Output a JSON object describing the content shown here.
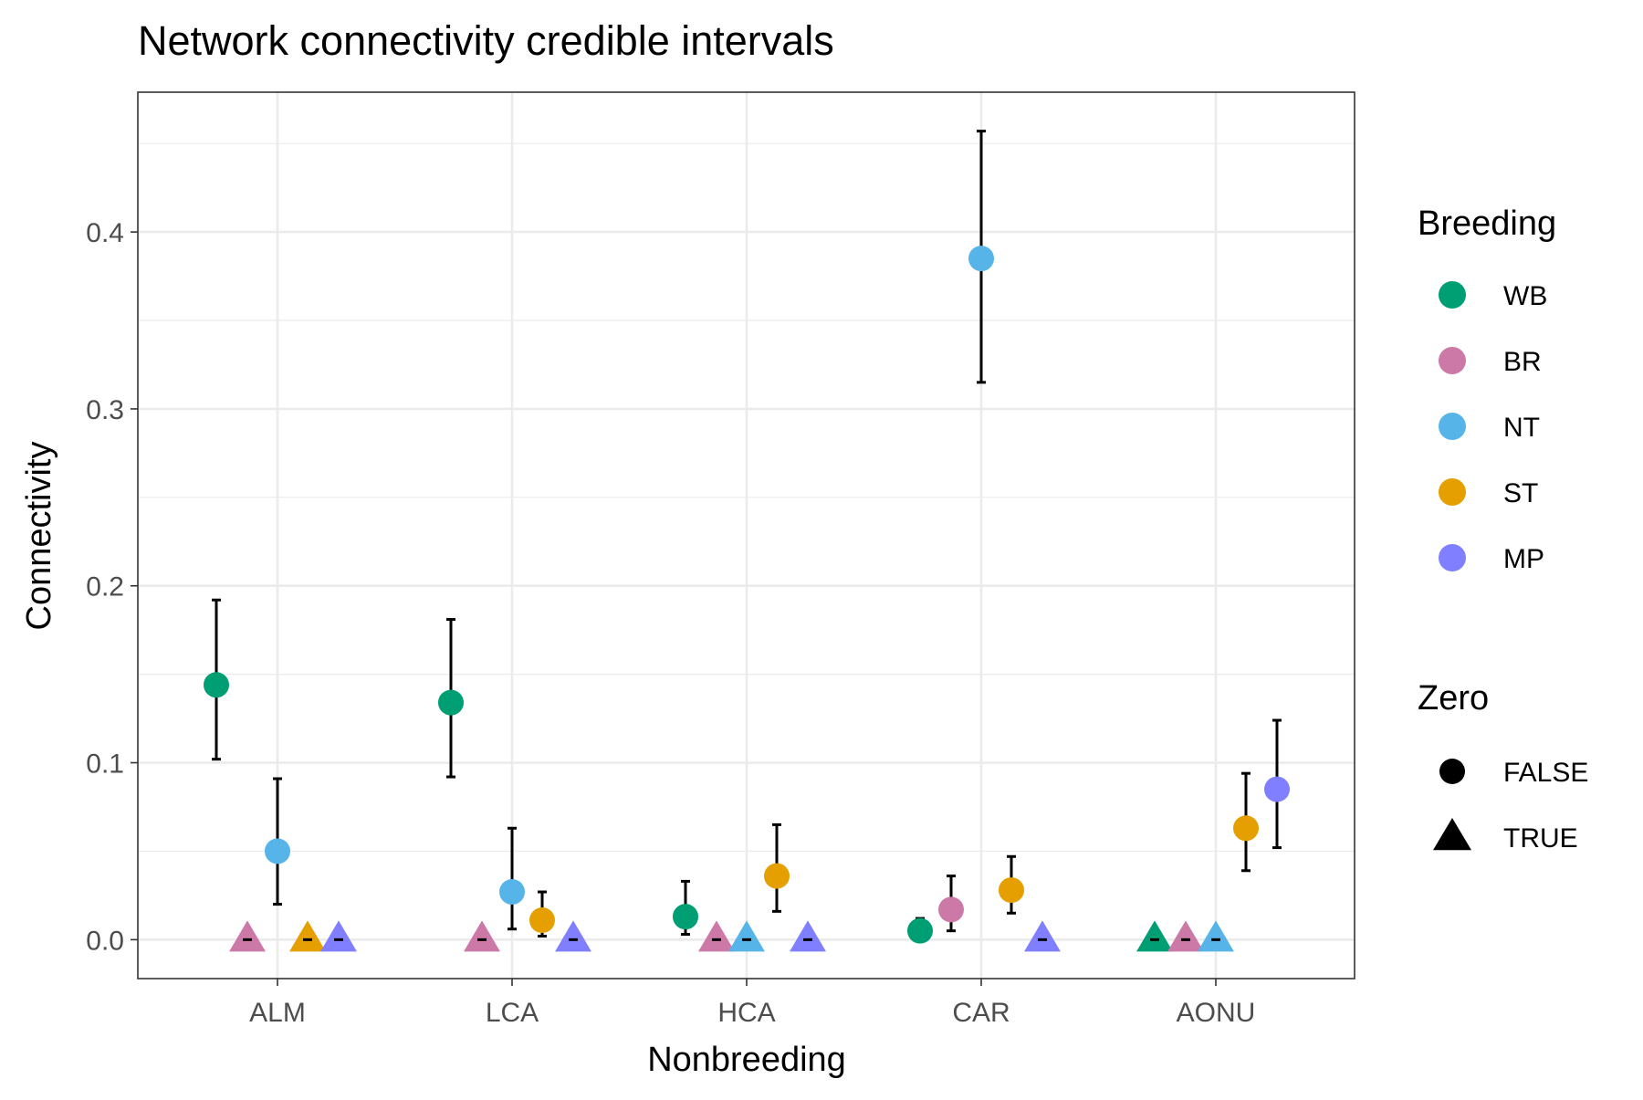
{
  "chart_data": {
    "type": "scatter",
    "title": "Network connectivity credible intervals",
    "xlabel": "Nonbreeding",
    "ylabel": "Connectivity",
    "categories": [
      "ALM",
      "LCA",
      "HCA",
      "CAR",
      "AONU"
    ],
    "yticks": [
      "0.0",
      "0.1",
      "0.2",
      "0.3",
      "0.4"
    ],
    "ylim": [
      -0.022,
      0.479
    ],
    "grid": true,
    "legend_placement": "right",
    "legend": {
      "breeding": {
        "title": "Breeding",
        "items": [
          {
            "label": "WB",
            "color": "#009E73"
          },
          {
            "label": "BR",
            "color": "#CC79A7"
          },
          {
            "label": "NT",
            "color": "#56B4E9"
          },
          {
            "label": "ST",
            "color": "#E69F00"
          },
          {
            "label": "MP",
            "color": "#7F7FFF"
          }
        ]
      },
      "zero": {
        "title": "Zero",
        "items": [
          {
            "label": "FALSE",
            "shape": "circle"
          },
          {
            "label": "TRUE",
            "shape": "triangle"
          }
        ]
      }
    },
    "series": [
      {
        "nonbreeding": "ALM",
        "breeding": "WB",
        "value": 0.144,
        "lower": 0.102,
        "upper": 0.192,
        "zero": false
      },
      {
        "nonbreeding": "ALM",
        "breeding": "BR",
        "value": 0.0,
        "lower": 0.0,
        "upper": 0.0,
        "zero": true
      },
      {
        "nonbreeding": "ALM",
        "breeding": "NT",
        "value": 0.05,
        "lower": 0.02,
        "upper": 0.091,
        "zero": false
      },
      {
        "nonbreeding": "ALM",
        "breeding": "ST",
        "value": 0.0,
        "lower": 0.0,
        "upper": 0.0,
        "zero": true
      },
      {
        "nonbreeding": "ALM",
        "breeding": "MP",
        "value": 0.0,
        "lower": 0.0,
        "upper": 0.0,
        "zero": true
      },
      {
        "nonbreeding": "LCA",
        "breeding": "WB",
        "value": 0.134,
        "lower": 0.092,
        "upper": 0.181,
        "zero": false
      },
      {
        "nonbreeding": "LCA",
        "breeding": "BR",
        "value": 0.0,
        "lower": 0.0,
        "upper": 0.0,
        "zero": true
      },
      {
        "nonbreeding": "LCA",
        "breeding": "NT",
        "value": 0.027,
        "lower": 0.006,
        "upper": 0.063,
        "zero": false
      },
      {
        "nonbreeding": "LCA",
        "breeding": "ST",
        "value": 0.011,
        "lower": 0.002,
        "upper": 0.027,
        "zero": false
      },
      {
        "nonbreeding": "LCA",
        "breeding": "MP",
        "value": 0.0,
        "lower": 0.0,
        "upper": 0.0,
        "zero": true
      },
      {
        "nonbreeding": "HCA",
        "breeding": "WB",
        "value": 0.013,
        "lower": 0.003,
        "upper": 0.033,
        "zero": false
      },
      {
        "nonbreeding": "HCA",
        "breeding": "BR",
        "value": 0.0,
        "lower": 0.0,
        "upper": 0.0,
        "zero": true
      },
      {
        "nonbreeding": "HCA",
        "breeding": "NT",
        "value": 0.0,
        "lower": 0.0,
        "upper": 0.0,
        "zero": true
      },
      {
        "nonbreeding": "HCA",
        "breeding": "ST",
        "value": 0.036,
        "lower": 0.016,
        "upper": 0.065,
        "zero": false
      },
      {
        "nonbreeding": "HCA",
        "breeding": "MP",
        "value": 0.0,
        "lower": 0.0,
        "upper": 0.0,
        "zero": true
      },
      {
        "nonbreeding": "CAR",
        "breeding": "WB",
        "value": 0.005,
        "lower": 0.001,
        "upper": 0.012,
        "zero": false
      },
      {
        "nonbreeding": "CAR",
        "breeding": "BR",
        "value": 0.017,
        "lower": 0.005,
        "upper": 0.036,
        "zero": false
      },
      {
        "nonbreeding": "CAR",
        "breeding": "NT",
        "value": 0.385,
        "lower": 0.315,
        "upper": 0.457,
        "zero": false
      },
      {
        "nonbreeding": "CAR",
        "breeding": "ST",
        "value": 0.028,
        "lower": 0.015,
        "upper": 0.047,
        "zero": false
      },
      {
        "nonbreeding": "CAR",
        "breeding": "MP",
        "value": 0.0,
        "lower": 0.0,
        "upper": 0.0,
        "zero": true
      },
      {
        "nonbreeding": "AONU",
        "breeding": "WB",
        "value": 0.0,
        "lower": 0.0,
        "upper": 0.0,
        "zero": true
      },
      {
        "nonbreeding": "AONU",
        "breeding": "BR",
        "value": 0.0,
        "lower": 0.0,
        "upper": 0.0,
        "zero": true
      },
      {
        "nonbreeding": "AONU",
        "breeding": "NT",
        "value": 0.0,
        "lower": 0.0,
        "upper": 0.0,
        "zero": true
      },
      {
        "nonbreeding": "AONU",
        "breeding": "ST",
        "value": 0.063,
        "lower": 0.039,
        "upper": 0.094,
        "zero": false
      },
      {
        "nonbreeding": "AONU",
        "breeding": "MP",
        "value": 0.085,
        "lower": 0.052,
        "upper": 0.124,
        "zero": false
      }
    ]
  }
}
